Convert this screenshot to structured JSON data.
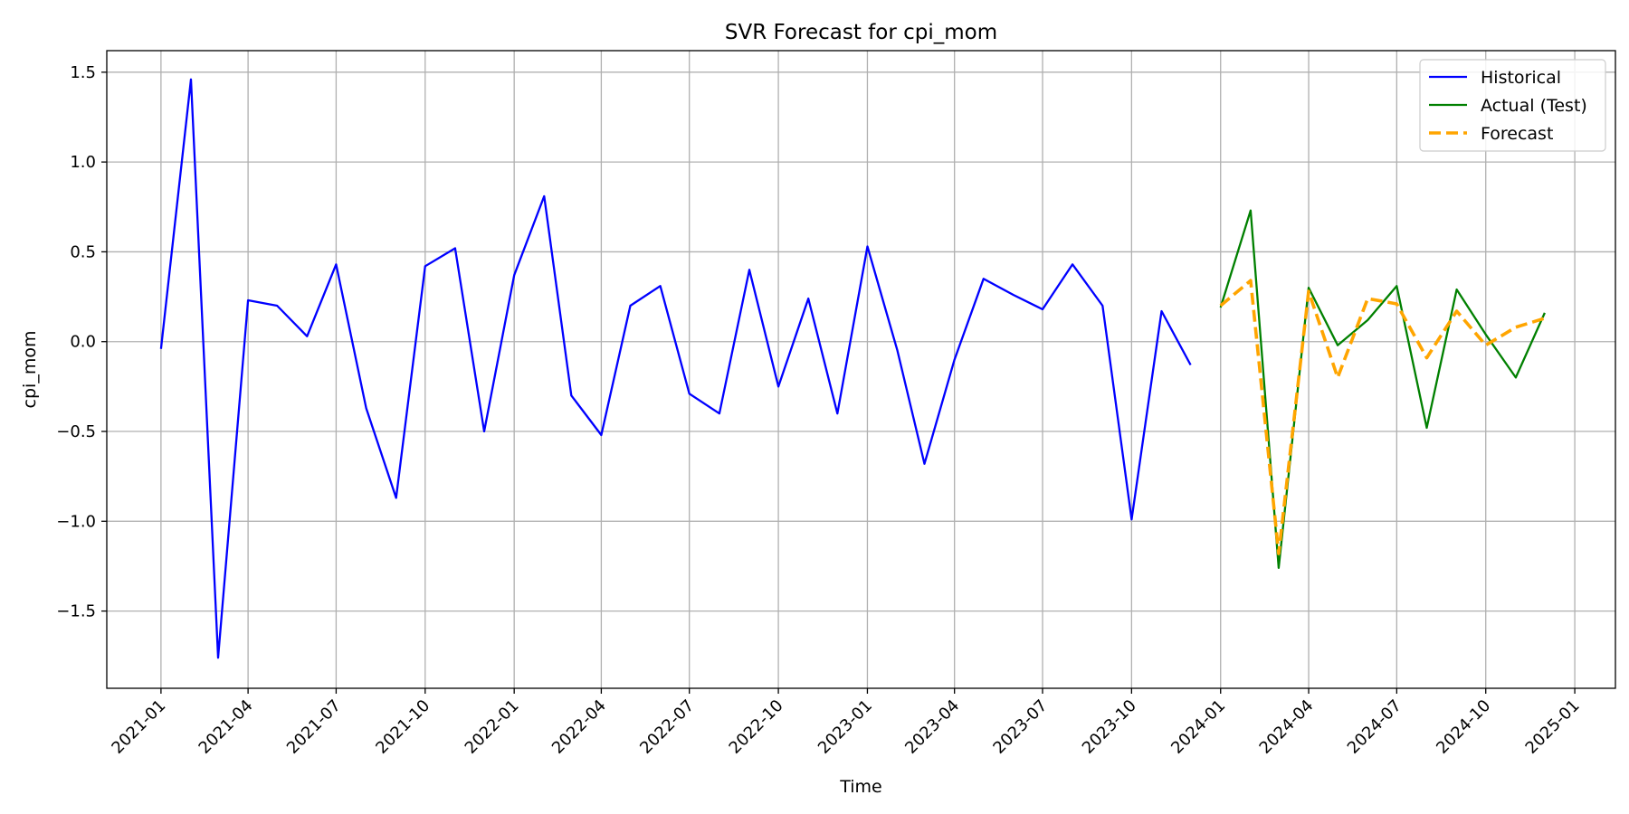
{
  "chart_data": {
    "type": "line",
    "title": "SVR Forecast for cpi_mom",
    "xlabel": "Time",
    "ylabel": "cpi_mom",
    "xlim": [
      "2020-11-06",
      "2025-02-12"
    ],
    "ylim": [
      -1.93,
      1.62
    ],
    "grid": true,
    "legend_position": "top-right",
    "x_ticks": [
      "2021-01",
      "2021-04",
      "2021-07",
      "2021-10",
      "2022-01",
      "2022-04",
      "2022-07",
      "2022-10",
      "2023-01",
      "2023-04",
      "2023-07",
      "2023-10",
      "2024-01",
      "2024-04",
      "2024-07",
      "2024-10",
      "2025-01"
    ],
    "y_ticks": [
      {
        "value": 1.5,
        "label": "1.5"
      },
      {
        "value": 1.0,
        "label": "1.0"
      },
      {
        "value": 0.5,
        "label": "0.5"
      },
      {
        "value": 0.0,
        "label": "0.0"
      },
      {
        "value": -0.5,
        "label": "−0.5"
      },
      {
        "value": -1.0,
        "label": "−1.0"
      },
      {
        "value": -1.5,
        "label": "−1.5"
      }
    ],
    "series": [
      {
        "name": "Historical",
        "color": "#0000ff",
        "style": "solid",
        "x": [
          "2021-01-01",
          "2021-02-01",
          "2021-03-01",
          "2021-04-01",
          "2021-05-01",
          "2021-06-01",
          "2021-07-01",
          "2021-08-01",
          "2021-09-01",
          "2021-10-01",
          "2021-11-01",
          "2021-12-01",
          "2022-01-01",
          "2022-02-01",
          "2022-03-01",
          "2022-04-01",
          "2022-05-01",
          "2022-06-01",
          "2022-07-01",
          "2022-08-01",
          "2022-09-01",
          "2022-10-01",
          "2022-11-01",
          "2022-12-01",
          "2023-01-01",
          "2023-02-01",
          "2023-03-01",
          "2023-04-01",
          "2023-05-01",
          "2023-06-01",
          "2023-07-01",
          "2023-08-01",
          "2023-09-01",
          "2023-10-01",
          "2023-11-01",
          "2023-12-01"
        ],
        "y": [
          -0.04,
          1.46,
          -1.76,
          0.23,
          0.2,
          0.03,
          0.43,
          -0.37,
          -0.87,
          0.42,
          0.52,
          -0.5,
          0.37,
          0.81,
          -0.3,
          -0.52,
          0.2,
          0.31,
          -0.29,
          -0.4,
          0.4,
          -0.25,
          0.24,
          -0.4,
          0.53,
          -0.05,
          -0.68,
          -0.1,
          0.35,
          0.26,
          0.18,
          0.43,
          0.2,
          -0.99,
          0.17,
          -0.13
        ]
      },
      {
        "name": "Actual (Test)",
        "color": "#008000",
        "style": "solid",
        "x": [
          "2024-01-01",
          "2024-02-01",
          "2024-03-01",
          "2024-04-01",
          "2024-05-01",
          "2024-06-01",
          "2024-07-01",
          "2024-08-01",
          "2024-09-01",
          "2024-10-01",
          "2024-11-01",
          "2024-12-01"
        ],
        "y": [
          0.19,
          0.73,
          -1.26,
          0.3,
          -0.02,
          0.12,
          0.31,
          -0.48,
          0.29,
          0.04,
          -0.2,
          0.16
        ]
      },
      {
        "name": "Forecast",
        "color": "#ffa500",
        "style": "dashed",
        "x": [
          "2024-01-01",
          "2024-02-01",
          "2024-03-01",
          "2024-04-01",
          "2024-05-01",
          "2024-06-01",
          "2024-07-01",
          "2024-08-01",
          "2024-09-01",
          "2024-10-01",
          "2024-11-01",
          "2024-12-01"
        ],
        "y": [
          0.2,
          0.34,
          -1.18,
          0.28,
          -0.2,
          0.24,
          0.21,
          -0.09,
          0.17,
          -0.02,
          0.08,
          0.13
        ]
      }
    ]
  }
}
